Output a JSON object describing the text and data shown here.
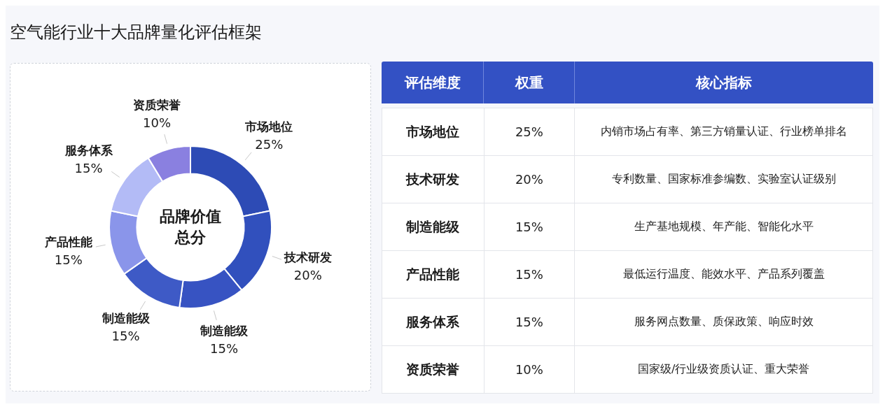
{
  "chart_data": [
    {
      "type": "donut",
      "title": "空气能行业十大品牌量化评估框架",
      "categories": [
        "市场地位",
        "技术研发",
        "制造能级",
        "制造能级",
        "产品性能",
        "服务体系",
        "资质荣誉"
      ],
      "values": [
        25,
        20,
        15,
        15,
        15,
        15,
        10
      ],
      "value_labels": [
        "25%",
        "20%",
        "15%",
        "15%",
        "15%",
        "15%",
        "10%"
      ],
      "colors": [
        "#2d4bb5",
        "#3150bd",
        "#3753c2",
        "#3e5ac6",
        "#8a95ea",
        "#b3bbf6",
        "#8a80e0"
      ],
      "annotations": [
        "品牌价值总分"
      ]
    },
    {
      "type": "other",
      "categories": [
        "评估维度",
        "权重",
        "核心指标"
      ],
      "y_categories": [
        "市场地位",
        "技术研发",
        "制造能级",
        "产品性能",
        "服务体系",
        "资质荣誉"
      ],
      "cell_labels": [
        [
          "25%",
          "内销市场占有率、第三方销量认证、行业榜单排名"
        ],
        [
          "20%",
          "专利数量、国家标准参编数、实验室认证级别"
        ],
        [
          "15%",
          "生产基地规模、年产能、智能化水平"
        ],
        [
          "15%",
          "最低运行温度、能效水平、产品系列覆盖"
        ],
        [
          "15%",
          "服务网点数量、质保政策、响应时效"
        ],
        [
          "10%",
          "国家级/行业级资质认证、重大荣誉"
        ]
      ]
    }
  ]
}
